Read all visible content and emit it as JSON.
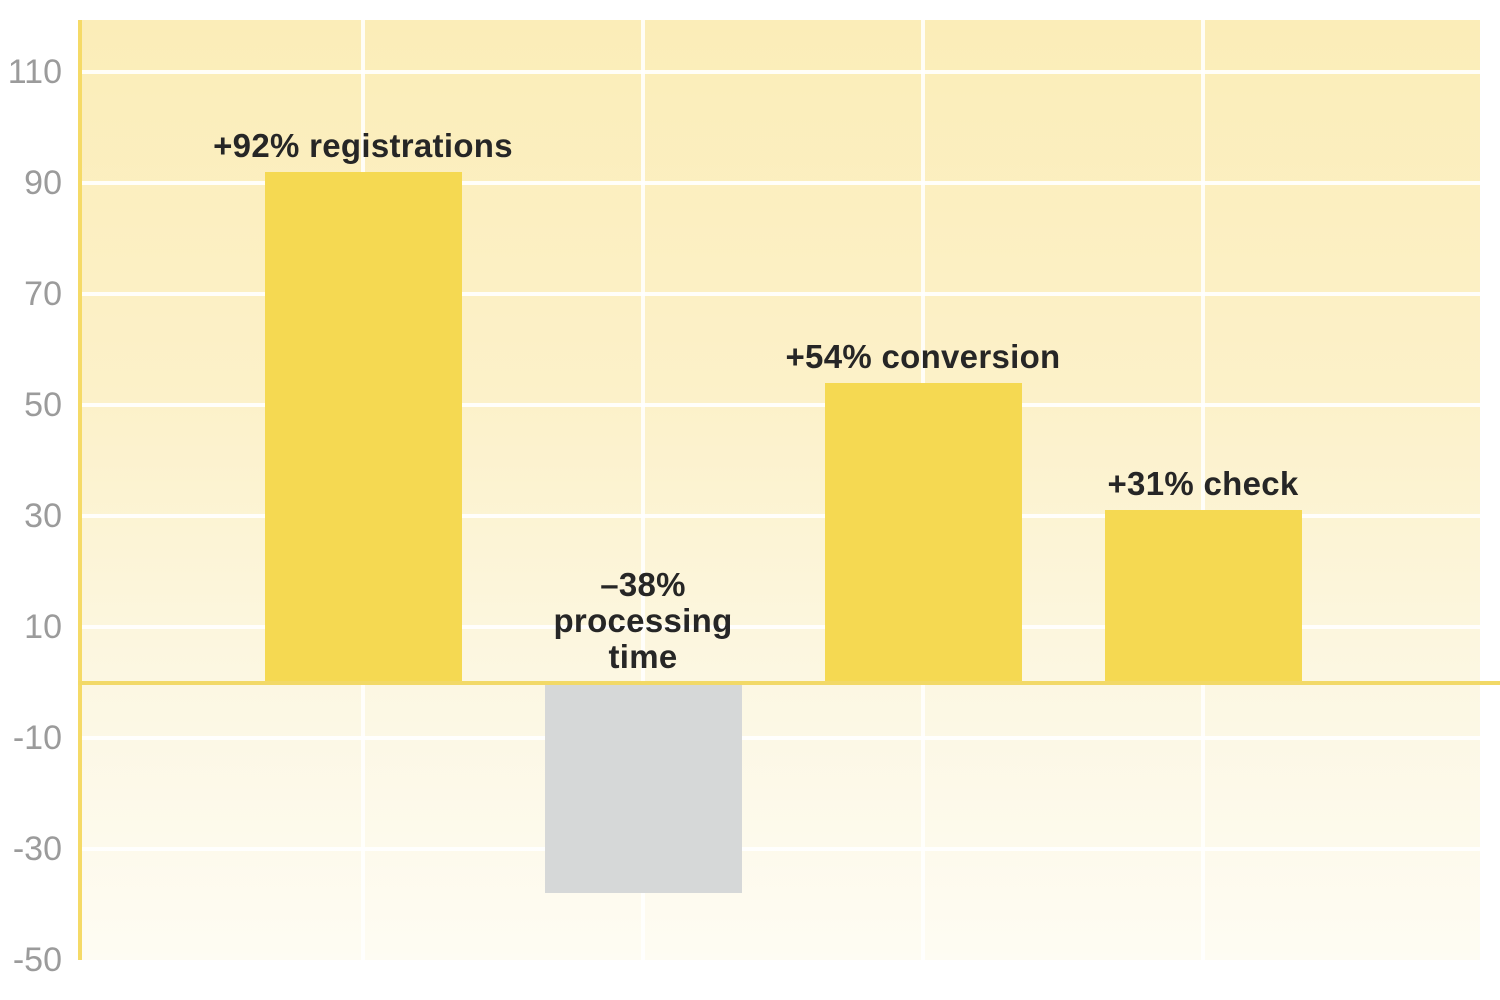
{
  "chart_data": {
    "type": "bar",
    "categories": [
      "registrations",
      "processing time",
      "conversion",
      "check"
    ],
    "values": [
      92,
      -38,
      54,
      31
    ],
    "bar_labels": [
      {
        "lines": [
          "+92% registrations"
        ]
      },
      {
        "lines": [
          "–38%",
          "processing",
          "time"
        ]
      },
      {
        "lines": [
          "+54% conversion"
        ]
      },
      {
        "lines": [
          "+31% check"
        ]
      }
    ],
    "ylim": [
      -50,
      110
    ],
    "yticks": [
      110,
      90,
      70,
      50,
      30,
      10,
      -10,
      -30,
      -50
    ],
    "grid": "on",
    "legend": "none",
    "colors": {
      "positive_bar": "#F5D952",
      "negative_bar": "#D6D8D8",
      "axis_line": "#F5DA67",
      "zero_line": "#F2D967",
      "gridline": "#FFFFFF",
      "tick_label": "#9B9B9B",
      "bar_label": "#262626",
      "plot_bg_top": "#FBEDB8",
      "plot_bg_bottom": "#FEFCF3"
    }
  }
}
